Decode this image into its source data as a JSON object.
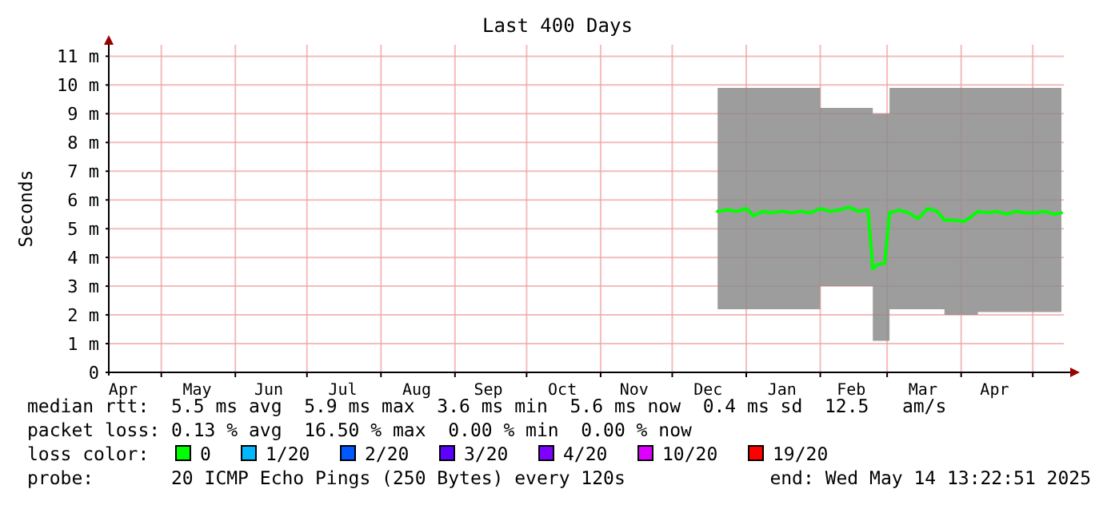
{
  "chart_data": {
    "type": "line",
    "title": "Last 400 Days",
    "ylabel": "Seconds",
    "xlim": [
      "2024-04-09",
      "2025-05-14"
    ],
    "ylim": [
      0,
      11.4
    ],
    "yticks": [
      0,
      {
        "value": 1,
        "label": "1 m"
      },
      {
        "value": 2,
        "label": "2 m"
      },
      {
        "value": 3,
        "label": "3 m"
      },
      {
        "value": 4,
        "label": "4 m"
      },
      {
        "value": 5,
        "label": "5 m"
      },
      {
        "value": 6,
        "label": "6 m"
      },
      {
        "value": 7,
        "label": "7 m"
      },
      {
        "value": 8,
        "label": "8 m"
      },
      {
        "value": 9,
        "label": "9 m"
      },
      {
        "value": 10,
        "label": "10 m"
      },
      {
        "value": 11,
        "label": "11 m"
      }
    ],
    "xticks": [
      {
        "value": "2024-04-15",
        "label": "Apr"
      },
      {
        "value": "2024-05-01",
        "label": null
      },
      {
        "value": "2024-05-16",
        "label": "May"
      },
      {
        "value": "2024-06-01",
        "label": null
      },
      {
        "value": "2024-06-15",
        "label": "Jun"
      },
      {
        "value": "2024-07-01",
        "label": null
      },
      {
        "value": "2024-07-16",
        "label": "Jul"
      },
      {
        "value": "2024-08-01",
        "label": null
      },
      {
        "value": "2024-08-16",
        "label": "Aug"
      },
      {
        "value": "2024-09-01",
        "label": null
      },
      {
        "value": "2024-09-15",
        "label": "Sep"
      },
      {
        "value": "2024-10-01",
        "label": null
      },
      {
        "value": "2024-10-16",
        "label": "Oct"
      },
      {
        "value": "2024-11-01",
        "label": null
      },
      {
        "value": "2024-11-15",
        "label": "Nov"
      },
      {
        "value": "2024-12-01",
        "label": null
      },
      {
        "value": "2024-12-16",
        "label": "Dec"
      },
      {
        "value": "2025-01-01",
        "label": null
      },
      {
        "value": "2025-01-16",
        "label": "Jan"
      },
      {
        "value": "2025-02-01",
        "label": null
      },
      {
        "value": "2025-02-14",
        "label": "Feb"
      },
      {
        "value": "2025-03-01",
        "label": null
      },
      {
        "value": "2025-03-16",
        "label": "Mar"
      },
      {
        "value": "2025-04-01",
        "label": null
      },
      {
        "value": "2025-04-15",
        "label": "Apr"
      },
      {
        "value": "2025-05-01",
        "label": null
      }
    ],
    "grid": true,
    "legend": "bottom",
    "legend_title": "loss color:",
    "series": [
      {
        "name": "0",
        "color": "#00ff00",
        "x": [
          "2024-12-20",
          "2024-12-24",
          "2024-12-28",
          "2025-01-01",
          "2025-01-04",
          "2025-01-08",
          "2025-01-12",
          "2025-01-16",
          "2025-01-20",
          "2025-01-24",
          "2025-01-28",
          "2025-02-01",
          "2025-02-05",
          "2025-02-09",
          "2025-02-13",
          "2025-02-17",
          "2025-02-21",
          "2025-02-23",
          "2025-02-25",
          "2025-02-28",
          "2025-03-02",
          "2025-03-06",
          "2025-03-10",
          "2025-03-14",
          "2025-03-18",
          "2025-03-22",
          "2025-03-25",
          "2025-03-29",
          "2025-04-02",
          "2025-04-05",
          "2025-04-08",
          "2025-04-12",
          "2025-04-16",
          "2025-04-20",
          "2025-04-24",
          "2025-04-28",
          "2025-05-02",
          "2025-05-06",
          "2025-05-10",
          "2025-05-13"
        ],
        "values": [
          5.6,
          5.65,
          5.6,
          5.7,
          5.45,
          5.6,
          5.55,
          5.6,
          5.55,
          5.6,
          5.55,
          5.7,
          5.6,
          5.65,
          5.75,
          5.6,
          5.65,
          3.6,
          3.75,
          3.8,
          5.55,
          5.65,
          5.55,
          5.35,
          5.7,
          5.6,
          5.3,
          5.3,
          5.25,
          5.4,
          5.6,
          5.55,
          5.6,
          5.5,
          5.6,
          5.55,
          5.55,
          5.6,
          5.5,
          5.55
        ],
        "lower": [
          2.2,
          2.2,
          2.2,
          2.2,
          2.2,
          2.2,
          2.2,
          2.2,
          2.2,
          2.2,
          2.2,
          3,
          3,
          3,
          3,
          3,
          3,
          1.1,
          1.1,
          1.1,
          2.2,
          2.2,
          2.2,
          2.2,
          2.2,
          2.2,
          2,
          2,
          2,
          2,
          2.1,
          2.1,
          2.1,
          2.1,
          2.1,
          2.1,
          2.1,
          2.1,
          2.1,
          2.1
        ],
        "upper": [
          9.9,
          9.9,
          9.9,
          9.9,
          9.9,
          9.9,
          9.9,
          9.9,
          9.9,
          9.9,
          9.9,
          9.2,
          9.2,
          9.2,
          9.2,
          9.2,
          9.2,
          9,
          9,
          9,
          9.9,
          9.9,
          9.9,
          9.9,
          9.9,
          9.9,
          9.9,
          9.9,
          9.9,
          9.9,
          9.9,
          9.9,
          9.9,
          9.9,
          9.9,
          9.9,
          9.9,
          9.9,
          9.9,
          9.9
        ]
      },
      {
        "name": "1/20",
        "color": "#00b8ff"
      },
      {
        "name": "2/20",
        "color": "#0059ff"
      },
      {
        "name": "3/20",
        "color": "#5e00ff"
      },
      {
        "name": "4/20",
        "color": "#7e00ff"
      },
      {
        "name": "10/20",
        "color": "#dd00ff"
      },
      {
        "name": "19/20",
        "color": "#ff0000"
      }
    ],
    "annotations": [
      "median rtt:  5.5 ms avg  5.9 ms max  3.6 ms min  5.6 ms now  0.4 ms sd  12.5   am/s",
      "packet loss: 0.13 % avg  16.50 % max  0.00 % min  0.00 % now",
      "probe:       20 ICMP Echo Pings (250 Bytes) every 120s",
      "end: Wed May 14 13:22:51 2025"
    ]
  }
}
